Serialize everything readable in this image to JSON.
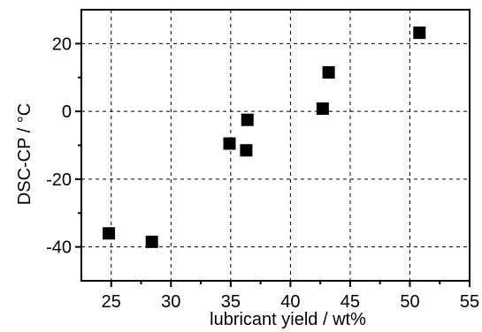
{
  "chart_data": {
    "type": "scatter",
    "title": "",
    "xlabel": "lubricant yield / wt%",
    "ylabel": "DSC-CP / °C",
    "xlim": [
      22.5,
      55
    ],
    "ylim": [
      -50,
      30
    ],
    "x_ticks": [
      25,
      30,
      35,
      40,
      45,
      50,
      55
    ],
    "y_ticks": [
      -40,
      -20,
      0,
      20
    ],
    "grid": true,
    "marker": "square",
    "series": [
      {
        "points": [
          {
            "x": 24.8,
            "y": -36
          },
          {
            "x": 28.4,
            "y": -38.5
          },
          {
            "x": 34.9,
            "y": -9.5
          },
          {
            "x": 36.3,
            "y": -11.5
          },
          {
            "x": 36.4,
            "y": -2.5
          },
          {
            "x": 42.7,
            "y": 0.8
          },
          {
            "x": 43.2,
            "y": 11.5
          },
          {
            "x": 50.8,
            "y": 23.2
          }
        ]
      }
    ],
    "colors": {
      "marker": "#000000",
      "axis": "#000000",
      "grid": "#000000"
    }
  }
}
